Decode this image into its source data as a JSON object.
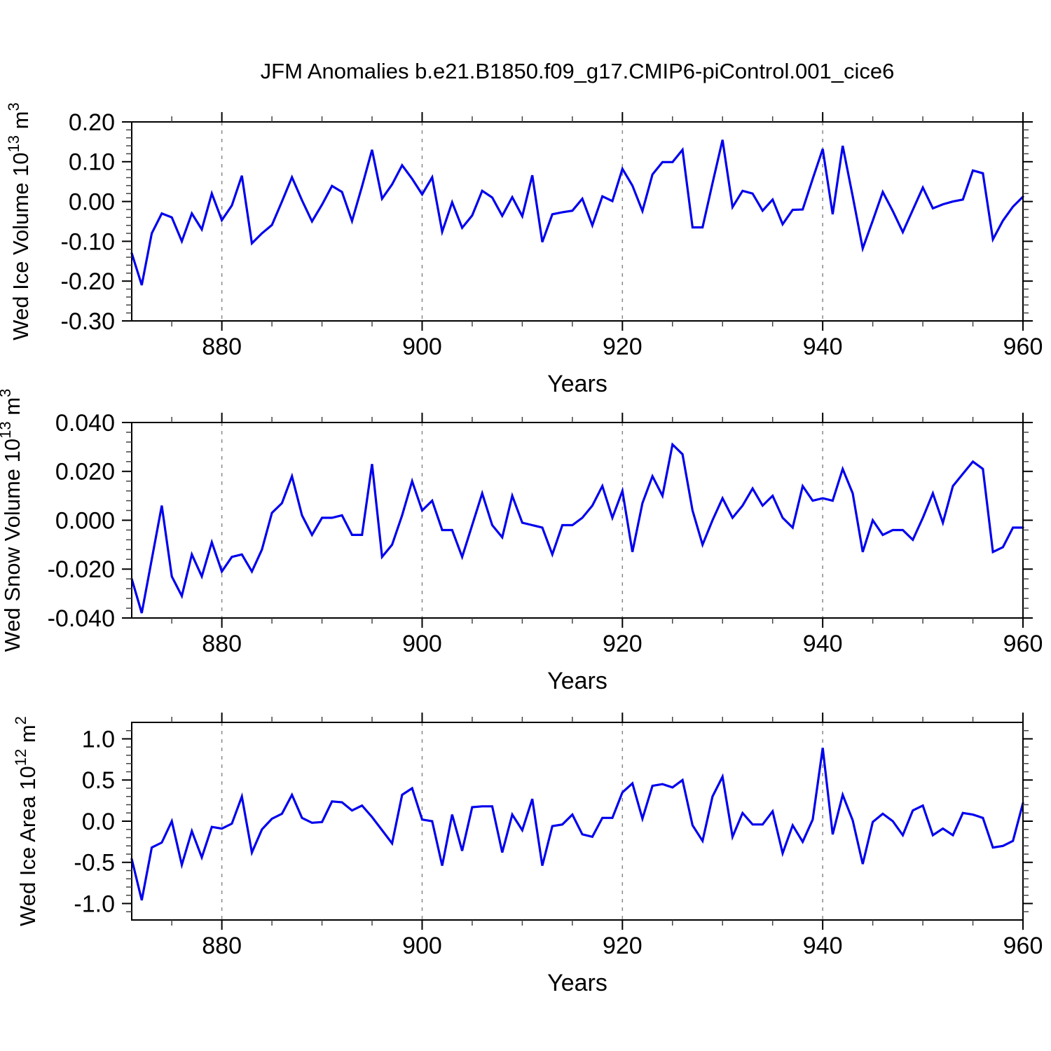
{
  "title": "JFM Anomalies b.e21.B1850.f09_g17.CMIP6-piControl.001_cice6",
  "figure": {
    "xlabel": "Years",
    "xlim": [
      871,
      960
    ],
    "x_major_ticks": [
      880,
      900,
      920,
      940,
      960
    ],
    "x_minor_step": 5,
    "gridline_years": [
      880,
      900,
      920,
      940
    ],
    "line_color": "#0000ee",
    "axis_color": "#000000",
    "grid_color": "#888888",
    "background_color": "#ffffff"
  },
  "chart_data": [
    {
      "type": "line",
      "name": "wed-ice-volume",
      "ylabel": "Wed Ice Volume 10^13 m^3",
      "ylabel_parts": [
        {
          "t": "Wed Ice Volume 10"
        },
        {
          "t": "13",
          "sup": true
        },
        {
          "t": " m"
        },
        {
          "t": "3",
          "sup": true
        }
      ],
      "xlabel": "Years",
      "ylim": [
        -0.3,
        0.2
      ],
      "y_major_step": 0.1,
      "y_minor_step": 0.02,
      "y_tick_labels": [
        "0.20",
        "0.10",
        "0.00",
        "-0.10",
        "-0.20",
        "-0.30"
      ],
      "grid": "vertical-dashed",
      "legend": "none",
      "x_start": 871,
      "x_step": 1,
      "values": [
        -0.13,
        -0.21,
        -0.08,
        -0.03,
        -0.04,
        -0.1,
        -0.03,
        -0.07,
        0.02,
        -0.047,
        -0.01,
        0.065,
        -0.105,
        -0.08,
        -0.059,
        0.0,
        0.061,
        0.003,
        -0.05,
        -0.008,
        0.039,
        0.024,
        -0.049,
        0.038,
        0.13,
        0.007,
        0.043,
        0.091,
        0.057,
        0.018,
        0.061,
        -0.076,
        -0.002,
        -0.066,
        -0.035,
        0.027,
        0.01,
        -0.036,
        0.011,
        -0.037,
        0.066,
        -0.102,
        -0.032,
        -0.027,
        -0.023,
        0.007,
        -0.06,
        0.013,
        0.001,
        0.082,
        0.04,
        -0.024,
        0.068,
        0.099,
        0.099,
        0.13,
        -0.065,
        -0.065,
        0.046,
        0.155,
        -0.014,
        0.027,
        0.02,
        -0.023,
        0.005,
        -0.057,
        -0.021,
        -0.02,
        0.057,
        0.132,
        -0.032,
        0.14,
        0.013,
        -0.118,
        -0.048,
        0.024,
        -0.024,
        -0.077,
        -0.021,
        0.035,
        -0.017,
        -0.007,
        0.0,
        0.005,
        0.078,
        0.071,
        -0.095,
        -0.048,
        -0.013,
        0.012
      ]
    },
    {
      "type": "line",
      "name": "wed-snow-volume",
      "ylabel": "Wed Snow Volume 10^13 m^3",
      "ylabel_parts": [
        {
          "t": "Wed Snow Volume 10"
        },
        {
          "t": "13",
          "sup": true
        },
        {
          "t": " m"
        },
        {
          "t": "3",
          "sup": true
        }
      ],
      "xlabel": "Years",
      "ylim": [
        -0.04,
        0.04
      ],
      "y_major_step": 0.02,
      "y_minor_step": 0.004,
      "y_tick_labels": [
        "0.040",
        "0.020",
        "0.000",
        "-0.020",
        "-0.040"
      ],
      "grid": "vertical-dashed",
      "legend": "none",
      "x_start": 871,
      "x_step": 1,
      "values": [
        -0.024,
        -0.038,
        -0.016,
        0.006,
        -0.023,
        -0.031,
        -0.014,
        -0.023,
        -0.009,
        -0.021,
        -0.015,
        -0.014,
        -0.021,
        -0.012,
        0.003,
        0.007,
        0.018,
        0.002,
        -0.006,
        0.001,
        0.001,
        0.002,
        -0.006,
        -0.006,
        0.023,
        -0.015,
        -0.01,
        0.002,
        0.016,
        0.004,
        0.008,
        -0.004,
        -0.004,
        -0.015,
        -0.002,
        0.011,
        -0.002,
        -0.007,
        0.01,
        -0.001,
        -0.002,
        -0.003,
        -0.014,
        -0.002,
        -0.002,
        0.001,
        0.006,
        0.014,
        0.001,
        0.012,
        -0.013,
        0.007,
        0.018,
        0.01,
        0.031,
        0.027,
        0.004,
        -0.01,
        0.0,
        0.009,
        0.001,
        0.006,
        0.013,
        0.006,
        0.01,
        0.001,
        -0.003,
        0.014,
        0.008,
        0.009,
        0.008,
        0.021,
        0.011,
        -0.013,
        0.0,
        -0.006,
        -0.004,
        -0.004,
        -0.008,
        0.001,
        0.011,
        -0.001,
        0.014,
        0.019,
        0.024,
        0.021,
        -0.013,
        -0.011,
        -0.003,
        -0.003
      ]
    },
    {
      "type": "line",
      "name": "wed-ice-area",
      "ylabel": "Wed Ice Area 10^12 m^2",
      "ylabel_parts": [
        {
          "t": "Wed Ice Area 10"
        },
        {
          "t": "12",
          "sup": true
        },
        {
          "t": " m"
        },
        {
          "t": "2",
          "sup": true
        }
      ],
      "xlabel": "Years",
      "ylim": [
        -1.2,
        1.2
      ],
      "y_major_step": 0.5,
      "y_minor_step": 0.1,
      "y_label_max": 1.0,
      "y_tick_labels": [
        "1.0",
        "0.5",
        "0.0",
        "-0.5",
        "-1.0"
      ],
      "grid": "vertical-dashed",
      "legend": "none",
      "x_start": 871,
      "x_step": 1,
      "values": [
        -0.46,
        -0.96,
        -0.32,
        -0.26,
        0.0,
        -0.53,
        -0.12,
        -0.44,
        -0.07,
        -0.09,
        -0.03,
        0.3,
        -0.38,
        -0.1,
        0.03,
        0.09,
        0.32,
        0.04,
        -0.02,
        -0.01,
        0.24,
        0.23,
        0.13,
        0.19,
        0.05,
        -0.11,
        -0.27,
        0.32,
        0.4,
        0.02,
        0.0,
        -0.54,
        0.08,
        -0.36,
        0.17,
        0.18,
        0.18,
        -0.38,
        0.08,
        -0.11,
        0.27,
        -0.54,
        -0.06,
        -0.04,
        0.08,
        -0.16,
        -0.19,
        0.04,
        0.04,
        0.35,
        0.46,
        0.03,
        0.43,
        0.45,
        0.41,
        0.5,
        -0.05,
        -0.24,
        0.3,
        0.54,
        -0.19,
        0.1,
        -0.04,
        -0.04,
        0.12,
        -0.39,
        -0.05,
        -0.25,
        0.02,
        0.89,
        -0.16,
        0.32,
        0.01,
        -0.52,
        -0.01,
        0.09,
        0.0,
        -0.17,
        0.13,
        0.19,
        -0.17,
        -0.09,
        -0.17,
        0.1,
        0.08,
        0.04,
        -0.32,
        -0.3,
        -0.24,
        0.22
      ]
    }
  ]
}
